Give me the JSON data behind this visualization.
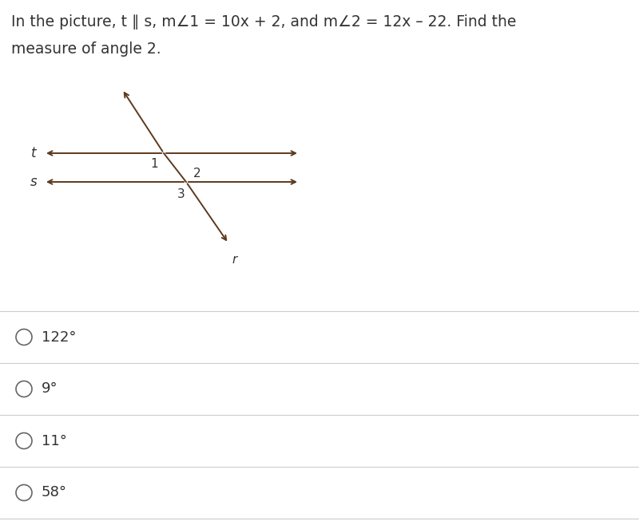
{
  "bg_color": "#ffffff",
  "line1": "In the picture, t ∥ s, m∠1 = 10x + 2, and m∠2 = 12x – 22. Find the",
  "line2": "measure of angle 2.",
  "line_color": "#5C3A1E",
  "text_color": "#333333",
  "choices": [
    "122°",
    "9°",
    "11°",
    "58°"
  ],
  "fig_width": 8.0,
  "fig_height": 6.58,
  "t_label": "t",
  "s_label": "s",
  "r_label": "r",
  "angle_labels": [
    "1",
    "2",
    "3"
  ],
  "divider_color": "#cccccc",
  "choice_fontsize": 13,
  "question_fontsize": 13.5
}
